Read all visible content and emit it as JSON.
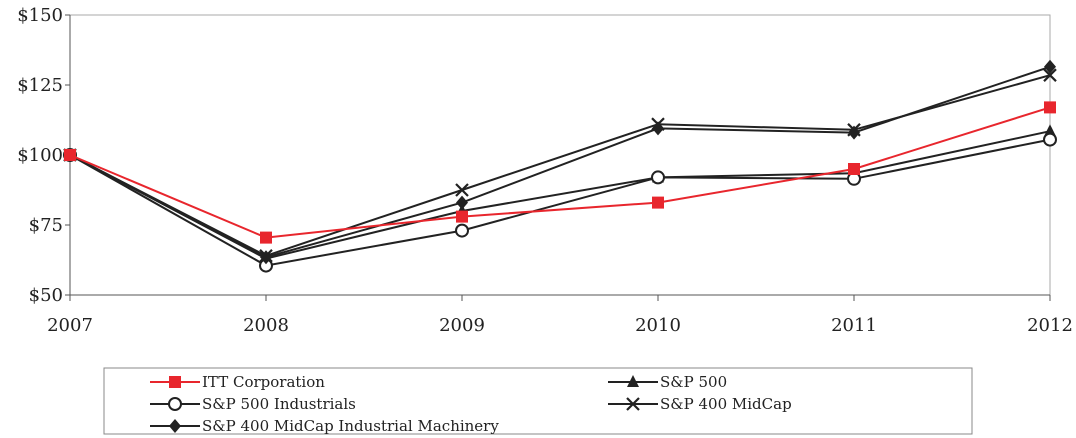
{
  "chart_data": {
    "type": "line",
    "categories": [
      "2007",
      "2008",
      "2009",
      "2010",
      "2011",
      "2012"
    ],
    "ylim": [
      50,
      150
    ],
    "yticks": [
      50,
      75,
      100,
      125,
      150
    ],
    "ytick_labels": [
      "$50",
      "$75",
      "$100",
      "$125",
      "$150"
    ],
    "xlabel": "",
    "ylabel": "",
    "grid": "none",
    "legend_position": "bottom",
    "series": [
      {
        "name": "ITT Corporation",
        "color": "#e8262d",
        "marker": "square",
        "values": [
          100,
          70.5,
          78,
          83,
          95,
          117
        ]
      },
      {
        "name": "S&P 500",
        "color": "#222222",
        "marker": "triangle",
        "values": [
          100,
          63,
          80,
          92,
          93.5,
          108.5
        ]
      },
      {
        "name": "S&P 500 Industrials",
        "color": "#222222",
        "marker": "circle",
        "values": [
          100,
          60.5,
          73,
          92,
          91.5,
          105.5
        ]
      },
      {
        "name": "S&P 400 MidCap",
        "color": "#222222",
        "marker": "x",
        "values": [
          100,
          64,
          87.5,
          111,
          109,
          128.5
        ]
      },
      {
        "name": "S&P 400 MidCap Industrial Machinery",
        "color": "#222222",
        "marker": "diamond",
        "values": [
          100,
          63.5,
          83,
          109.5,
          108,
          131.5
        ]
      }
    ]
  }
}
